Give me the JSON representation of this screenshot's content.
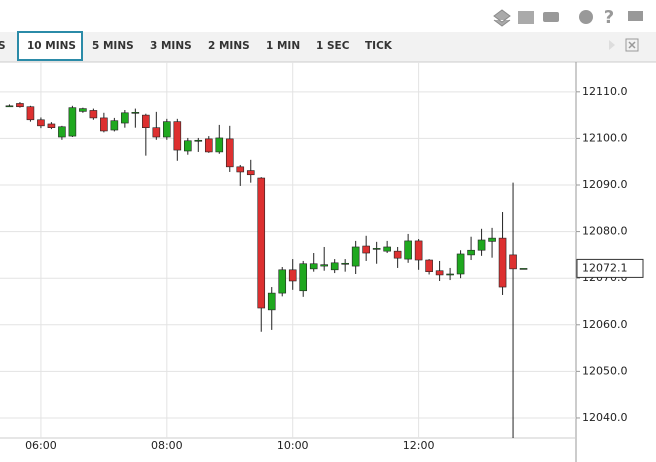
{
  "toolbar": {
    "tabs": [
      "S",
      "10 MINS",
      "5 MINS",
      "3 MINS",
      "2 MINS",
      "1 MIN",
      "1 SEC",
      "TICK"
    ],
    "selected": 1
  },
  "chart_data": {
    "type": "candlestick",
    "x": [
      330,
      340,
      350,
      360,
      370,
      380,
      390,
      400,
      410,
      420,
      430,
      440,
      450,
      460,
      470,
      480,
      490,
      500,
      510,
      520,
      530,
      540,
      550,
      560,
      570,
      580,
      590,
      600,
      610,
      620,
      630,
      640,
      650,
      660,
      670,
      680,
      690,
      700,
      710,
      720,
      730,
      740,
      750,
      760,
      770,
      780,
      790,
      800,
      810,
      820
    ],
    "open": [
      12107,
      12107.5,
      12106.8,
      12104,
      12103.1,
      12100.3,
      12100.5,
      12105.8,
      12106,
      12104.4,
      12101.8,
      12103.3,
      12105.4,
      12105,
      12102.3,
      12100.3,
      12103.6,
      12097.3,
      12099.4,
      12099.9,
      12097.1,
      12099.9,
      12093.9,
      12093.1,
      12091.5,
      12063.2,
      12066.8,
      12071.8,
      12067.3,
      12072,
      12072.6,
      12071.8,
      12073.1,
      12072.6,
      12076.9,
      12076.2,
      12075.8,
      12075.8,
      12074.1,
      12078,
      12073.9,
      12071.6,
      12070.8,
      12070.9,
      12075,
      12076,
      12077.9,
      12078.6,
      12075,
      12072.1
    ],
    "high": [
      12107.3,
      12107.8,
      12107,
      12104.5,
      12103.5,
      12102.7,
      12107,
      12106.6,
      12106.4,
      12105.5,
      12104.4,
      12106.1,
      12106.4,
      12105.3,
      12105.7,
      12104.2,
      12104.2,
      12100.1,
      12100.1,
      12100.5,
      12102.9,
      12102.7,
      12094.3,
      12095.4,
      12091.7,
      12068.1,
      12072.4,
      12074.1,
      12073.7,
      12075.4,
      12076.7,
      12074.1,
      12074.1,
      12078,
      12079.1,
      12077.8,
      12078,
      12076.7,
      12079.5,
      12078.4,
      12074.1,
      12073.7,
      12072.2,
      12076,
      12078.9,
      12080.6,
      12080.8,
      12084.2,
      12090.5,
      12072.1
    ],
    "low": [
      12106.8,
      12106.6,
      12103.6,
      12102.2,
      12102,
      12099.7,
      12100.3,
      12105.5,
      12104,
      12101.3,
      12101.5,
      12102.3,
      12102.3,
      12096.3,
      12099.7,
      12099.7,
      12095.2,
      12096.5,
      12097.1,
      12096.9,
      12096.7,
      12092.8,
      12089.8,
      12090.5,
      12058.5,
      12058.9,
      12066.1,
      12067.5,
      12066,
      12071.4,
      12071.6,
      12071.1,
      12071.4,
      12070.9,
      12073.7,
      12073.1,
      12075.4,
      12072.2,
      12073.3,
      12071.8,
      12070.8,
      12069.4,
      12069.6,
      12070,
      12073.9,
      12074.8,
      12074.4,
      12066.4,
      12035.7,
      12072.1
    ],
    "close": [
      12107,
      12106.8,
      12104,
      12102.7,
      12102.3,
      12102.5,
      12106.6,
      12106.4,
      12104.4,
      12101.6,
      12103.8,
      12105.5,
      12105.6,
      12102.3,
      12100.3,
      12103.6,
      12097.5,
      12099.5,
      12099.6,
      12097.1,
      12100.1,
      12093.9,
      12092.8,
      12092.2,
      12063.6,
      12066.8,
      12071.8,
      12069.4,
      12073.1,
      12073.1,
      12072.9,
      12073.3,
      12073.2,
      12076.7,
      12075.4,
      12076.4,
      12076.7,
      12074.3,
      12078,
      12073.9,
      12071.4,
      12070.7,
      12070.9,
      12075.2,
      12076,
      12078.2,
      12078.6,
      12068.1,
      12072,
      12072.1
    ],
    "up_color": "#1fa81f",
    "down_color": "#dd3030",
    "last_price": 12072.1,
    "xlim": [
      321,
      870
    ],
    "xticks": [
      {
        "value": 360,
        "label": "06:00"
      },
      {
        "value": 480,
        "label": "08:00"
      },
      {
        "value": 600,
        "label": "10:00"
      },
      {
        "value": 720,
        "label": "12:00"
      }
    ],
    "ylim": [
      12035.7,
      12116.4
    ],
    "yticks": [
      {
        "value": 12040,
        "label": "12040.0"
      },
      {
        "value": 12050,
        "label": "12050.0"
      },
      {
        "value": 12060,
        "label": "12060.0"
      },
      {
        "value": 12070,
        "label": "12070.0"
      },
      {
        "value": 12080,
        "label": "12080.0"
      },
      {
        "value": 12090,
        "label": "12090.0"
      },
      {
        "value": 12100,
        "label": "12100.0"
      },
      {
        "value": 12110,
        "label": "12110.0"
      }
    ],
    "grid": true
  }
}
